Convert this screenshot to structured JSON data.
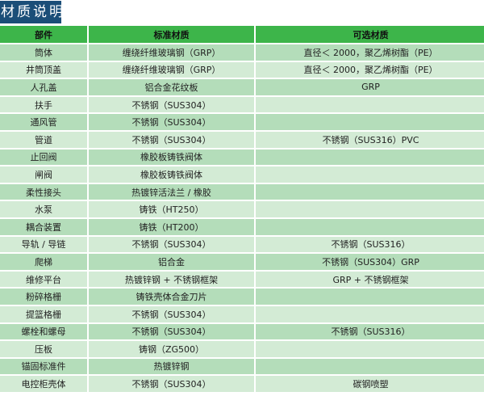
{
  "title": "材质说明",
  "colors": {
    "title_bg": "#1b4e78",
    "header_bg": "#3db54a",
    "row_dark": "#b4ddba",
    "row_light": "#d3ebd5"
  },
  "columns": [
    "部件",
    "标准材质",
    "可选材质"
  ],
  "rows": [
    [
      "筒体",
      "缠绕纤维玻璃钢（GRP）",
      "直径＜ 2000，聚乙烯树酯（PE）"
    ],
    [
      "井筒顶盖",
      "缠绕纤维玻璃钢（GRP）",
      "直径＜ 2000，聚乙烯树酯（PE）"
    ],
    [
      "人孔盖",
      "铝合金花纹板",
      "GRP"
    ],
    [
      "扶手",
      "不锈钢（SUS304）",
      ""
    ],
    [
      "通风管",
      "不锈钢（SUS304）",
      ""
    ],
    [
      "管道",
      "不锈钢（SUS304）",
      "不锈钢（SUS316）PVC"
    ],
    [
      "止回阀",
      "橡胶板铸铁阀体",
      ""
    ],
    [
      "闸阀",
      "橡胶板铸铁阀体",
      ""
    ],
    [
      "柔性接头",
      "热镀锌活法兰 / 橡胶",
      ""
    ],
    [
      "水泵",
      "铸铁（HT250）",
      ""
    ],
    [
      "耦合装置",
      "铸铁（HT200）",
      ""
    ],
    [
      "导轨 / 导链",
      "不锈钢（SUS304）",
      "不锈钢（SUS316）"
    ],
    [
      "爬梯",
      "铝合金",
      "不锈钢（SUS304）GRP"
    ],
    [
      "维修平台",
      "热镀锌钢 + 不锈钢框架",
      "GRP + 不锈钢框架"
    ],
    [
      "粉碎格栅",
      "铸铁壳体合金刀片",
      ""
    ],
    [
      "提篮格栅",
      "不锈钢（SUS304）",
      ""
    ],
    [
      "螺栓和螺母",
      "不锈钢（SUS304）",
      "不锈钢（SUS316）"
    ],
    [
      "压板",
      "铸钢（ZG500）",
      ""
    ],
    [
      "锚固标准件",
      "热镀锌钢",
      ""
    ],
    [
      "电控柜壳体",
      "不锈钢（SUS304）",
      "碳钢喷塑"
    ]
  ]
}
